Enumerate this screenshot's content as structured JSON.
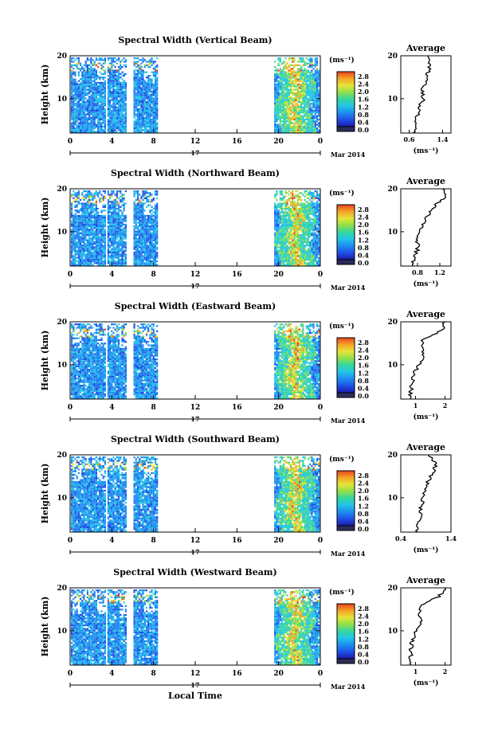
{
  "figure": {
    "xlabel": "Local Time",
    "date_label": "Mar 2014",
    "day_label": "17",
    "colorbar_unit": "(ms⁻¹)",
    "colorbar_ticks": [
      "2.8",
      "2.4",
      "2.0",
      "1.6",
      "1.2",
      "0.8",
      "0.4",
      "0.0"
    ],
    "colormap": [
      "#1a1aa8",
      "#1f4fe6",
      "#1e8cf0",
      "#22c4e8",
      "#35d6a0",
      "#8ee04a",
      "#e6e43a",
      "#f4a428",
      "#e8421e"
    ],
    "nodata_color": "#ffffff",
    "colorbar_under_color": "#2b2b5a",
    "profile_title": "Average"
  },
  "chart_data": [
    {
      "type": "heatmap",
      "title": "Spectral Width (Vertical Beam)",
      "ylabel": "Height (km)",
      "xlim": [
        0,
        24
      ],
      "ylim": [
        2,
        20
      ],
      "x_ticks": [
        "0",
        "4",
        "8",
        "12",
        "16",
        "20",
        "0"
      ],
      "y_ticks": [
        "20",
        "10"
      ],
      "data_intervals_hours": [
        [
          0,
          3.5
        ],
        [
          3.5,
          5.5
        ],
        [
          6,
          8.5
        ],
        [
          19.5,
          24
        ]
      ],
      "profile": {
        "xlim": [
          0.4,
          1.6
        ],
        "x_ticks": [
          "0.6",
          "1.4"
        ],
        "y_ticks": [
          "20",
          "10"
        ],
        "height_km": [
          2,
          4,
          6,
          8,
          10,
          12,
          14,
          16,
          18,
          20
        ],
        "mean_ms": [
          0.7,
          0.75,
          0.8,
          0.85,
          0.95,
          0.9,
          1.0,
          1.05,
          1.1,
          1.05
        ]
      }
    },
    {
      "type": "heatmap",
      "title": "Spectral Width (Northward Beam)",
      "ylabel": "Height (km)",
      "xlim": [
        0,
        24
      ],
      "ylim": [
        2,
        20
      ],
      "x_ticks": [
        "0",
        "4",
        "8",
        "12",
        "16",
        "20",
        "0"
      ],
      "y_ticks": [
        "20",
        "10"
      ],
      "data_intervals_hours": [
        [
          0,
          3.5
        ],
        [
          3.5,
          5.5
        ],
        [
          6,
          8.5
        ],
        [
          19.5,
          24
        ]
      ],
      "profile": {
        "xlim": [
          0.5,
          1.4
        ],
        "x_ticks": [
          "0.8",
          "1.2"
        ],
        "y_ticks": [
          "20",
          "10"
        ],
        "height_km": [
          2,
          4,
          6,
          8,
          10,
          12,
          14,
          16,
          18,
          20
        ],
        "mean_ms": [
          0.7,
          0.75,
          0.8,
          0.8,
          0.85,
          0.9,
          1.0,
          1.1,
          1.3,
          1.25
        ]
      }
    },
    {
      "type": "heatmap",
      "title": "Spectral Width (Eastward Beam)",
      "ylabel": "Height (km)",
      "xlim": [
        0,
        24
      ],
      "ylim": [
        2,
        20
      ],
      "x_ticks": [
        "0",
        "4",
        "8",
        "12",
        "16",
        "20",
        "0"
      ],
      "y_ticks": [
        "20",
        "10"
      ],
      "data_intervals_hours": [
        [
          0,
          3.5
        ],
        [
          3.5,
          5.5
        ],
        [
          6,
          8.5
        ],
        [
          19.5,
          24
        ]
      ],
      "profile": {
        "xlim": [
          0.5,
          2.2
        ],
        "x_ticks": [
          "1",
          "2"
        ],
        "y_ticks": [
          "20",
          "10"
        ],
        "height_km": [
          2,
          4,
          6,
          8,
          10,
          12,
          14,
          16,
          18,
          20
        ],
        "mean_ms": [
          0.8,
          0.85,
          0.9,
          0.95,
          1.1,
          1.3,
          1.2,
          1.25,
          1.9,
          2.0
        ]
      }
    },
    {
      "type": "heatmap",
      "title": "Spectral Width (Southward Beam)",
      "ylabel": "Height (km)",
      "xlim": [
        0,
        24
      ],
      "ylim": [
        2,
        20
      ],
      "x_ticks": [
        "0",
        "4",
        "8",
        "12",
        "16",
        "20",
        "0"
      ],
      "y_ticks": [
        "20",
        "10"
      ],
      "data_intervals_hours": [
        [
          0,
          3.5
        ],
        [
          3.5,
          5.5
        ],
        [
          6,
          8.5
        ],
        [
          19.5,
          24
        ]
      ],
      "profile": {
        "xlim": [
          0.4,
          1.4
        ],
        "x_ticks": [
          "0.4",
          "1.4"
        ],
        "y_ticks": [
          "20",
          "10"
        ],
        "height_km": [
          2,
          4,
          6,
          8,
          10,
          12,
          14,
          16,
          18,
          20
        ],
        "mean_ms": [
          0.7,
          0.75,
          0.8,
          0.8,
          0.85,
          0.9,
          0.95,
          1.05,
          1.1,
          0.95
        ]
      }
    },
    {
      "type": "heatmap",
      "title": "Spectral Width (Westward Beam)",
      "ylabel": "Height (km)",
      "xlim": [
        0,
        24
      ],
      "ylim": [
        2,
        20
      ],
      "x_ticks": [
        "0",
        "4",
        "8",
        "12",
        "16",
        "20",
        "0"
      ],
      "y_ticks": [
        "20",
        "10"
      ],
      "data_intervals_hours": [
        [
          0,
          3.5
        ],
        [
          3.5,
          5.5
        ],
        [
          6,
          8.5
        ],
        [
          19.5,
          24
        ]
      ],
      "profile": {
        "xlim": [
          0.5,
          2.2
        ],
        "x_ticks": [
          "1",
          "2"
        ],
        "y_ticks": [
          "20",
          "10"
        ],
        "height_km": [
          2,
          4,
          6,
          8,
          10,
          12,
          14,
          16,
          18,
          20
        ],
        "mean_ms": [
          0.8,
          0.85,
          0.85,
          0.9,
          1.0,
          1.2,
          1.1,
          1.2,
          1.8,
          2.0
        ]
      }
    }
  ]
}
